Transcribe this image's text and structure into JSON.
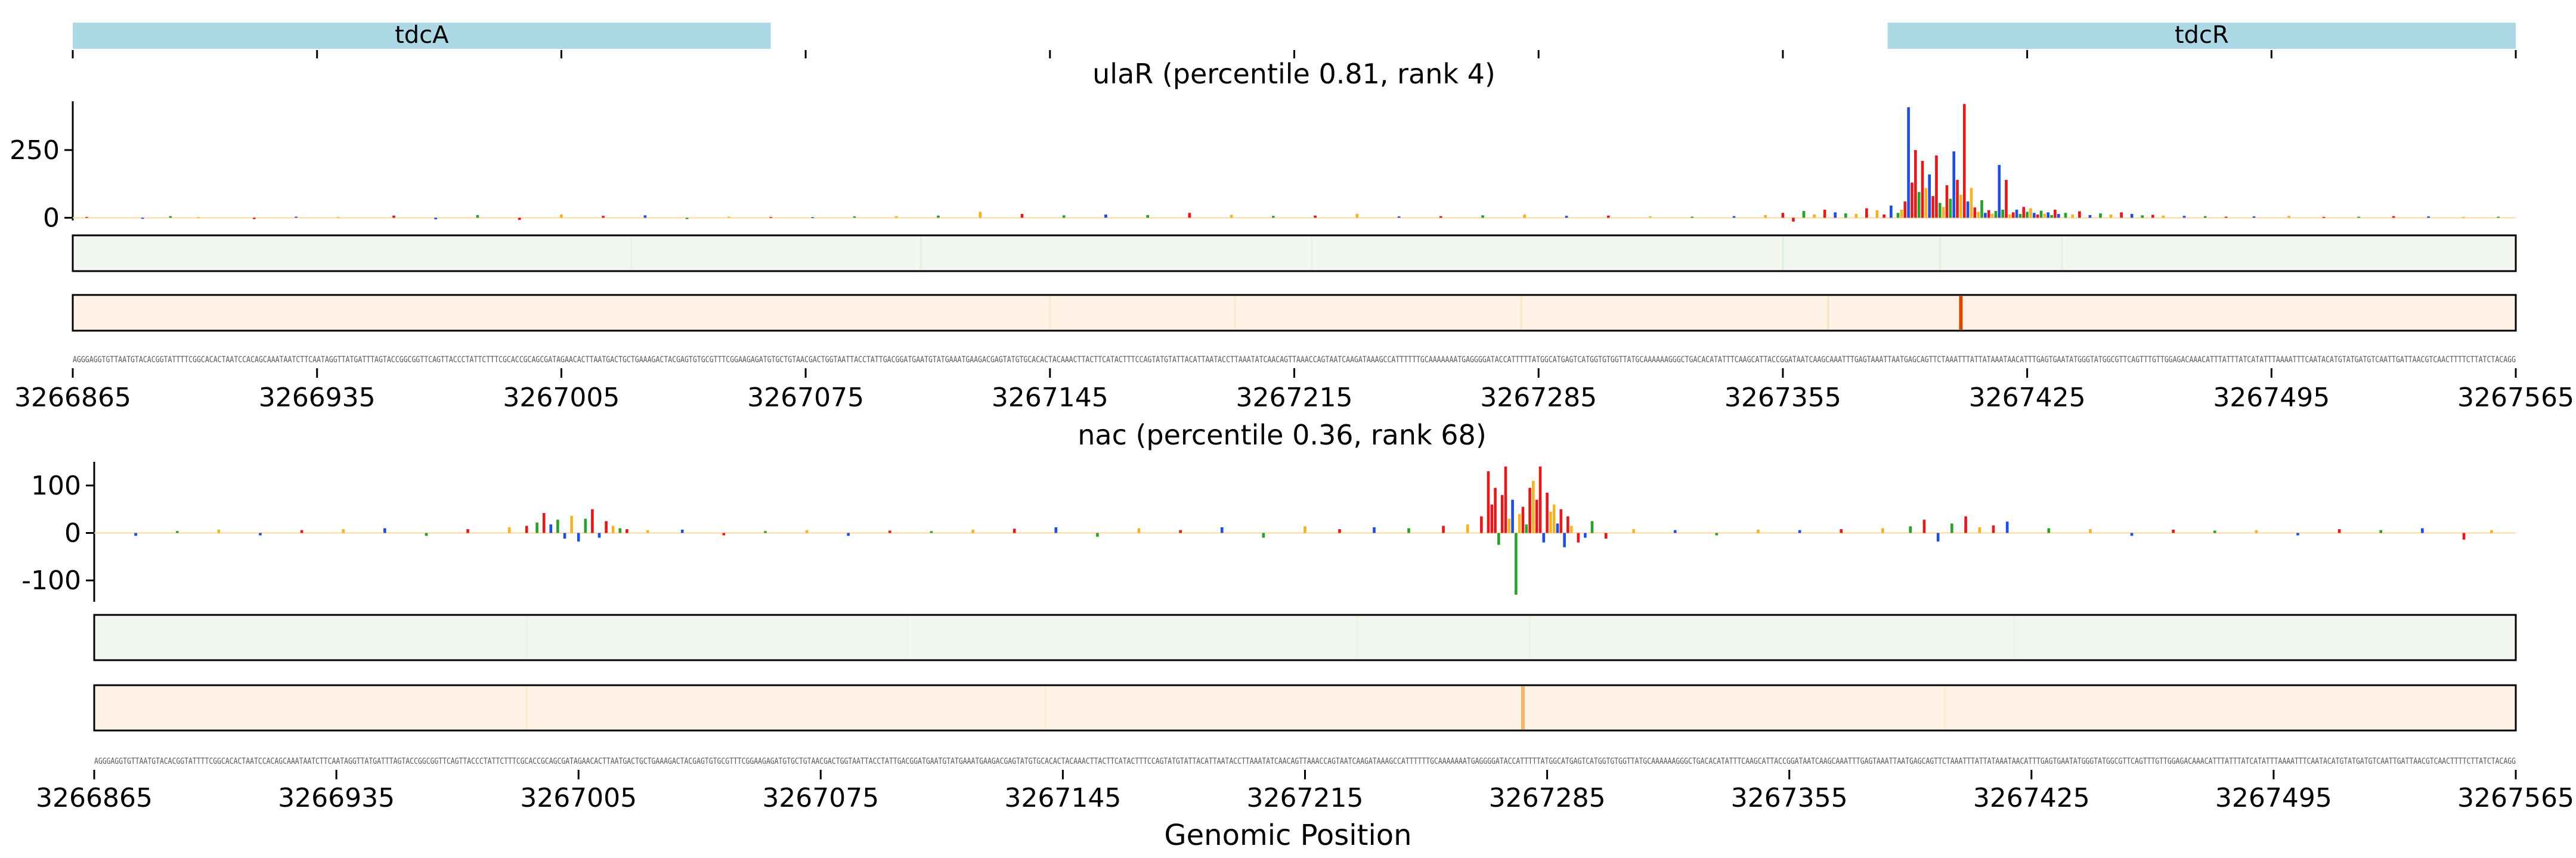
{
  "colors": {
    "A": "#2ca02c",
    "C": "#1f4fe0",
    "G": "#f5b324",
    "T": "#e31a1c",
    "gene": "#add8e6",
    "track1": "#f2f8f0",
    "track2": "#fff3e6",
    "heat_strong": "#d94801",
    "heat_medium": "#f6b26b"
  },
  "x_axis": {
    "label": "Genomic Position",
    "range": [
      3266865,
      3267565
    ],
    "ticks": [
      3266865,
      3266935,
      3267005,
      3267075,
      3267145,
      3267215,
      3267285,
      3267355,
      3267425,
      3267495,
      3267565
    ],
    "tick_labels": [
      "3266865",
      "3266935",
      "3267005",
      "3267075",
      "3267145",
      "3267215",
      "3267285",
      "3267355",
      "3267425",
      "3267495",
      "3267565"
    ]
  },
  "genes": [
    {
      "name": "tdcA",
      "start": 3266865,
      "end": 3267065
    },
    {
      "name": "tdcR",
      "start": 3267385,
      "end": 3267565
    }
  ],
  "sequence": "AGGGAGGTGTTAATGTACACGGTATTTTCGGCACACTAATCCACAGCAAATAATCTTCAATAGGTTATGATTTAGTACCGGCGGTTCAGTTACCCTATTCTTTCGCACCGCAGCGATAGAACACTTAATGACTGCTGAAAGACTACGAGTGTGCGTTTCGGAAGAGATGTGCTGTAACGACTGGTAATTACCTATTGACGGATGAATGTATGAAATGAAGACGAGTATGTGCACACTACAAACTTACTTCATACTTTCCAGTATGTATTACATTAATACCTTAAATATCAACAGTTAAACCAGTAATCAAGATAAAGCCATTTTTTGCAAAAAAATGAGGGGATACCATTTTTATGGCATGAGTCATGGTGTGGTTATGCAAAAAAGGGCTGACACATATTTCAAGCATTACCGGATAATCAAGCAAATTTGAGTAAATTAATGAGCAGTTCTAAATTTATTATAAATAACATTTGAGTGAATATGGGTATGGCGTTCAGTTTGTTGGAGACAAACATTTATTTATCATATTTAAAATTTCAATACATGTATGATGTCAATTGATTAACGTCAACTTTTCTTATCTACAGG",
  "chart_data": [
    {
      "type": "bar",
      "title": "ulaR (percentile 0.81, rank 4)",
      "yticks": [
        0,
        250
      ],
      "ylim": [
        -10,
        430
      ],
      "x": [
        3266869,
        3266885,
        3266893,
        3266901,
        3266917,
        3266929,
        3266941,
        3266957,
        3266969,
        3266981,
        3266993,
        3267005,
        3267017,
        3267029,
        3267041,
        3267053,
        3267065,
        3267077,
        3267089,
        3267101,
        3267113,
        3267125,
        3267137,
        3267149,
        3267161,
        3267173,
        3267185,
        3267197,
        3267209,
        3267221,
        3267233,
        3267245,
        3267257,
        3267269,
        3267281,
        3267293,
        3267305,
        3267317,
        3267329,
        3267341,
        3267350,
        3267355,
        3267358,
        3267361,
        3267364,
        3267367,
        3267370,
        3267373,
        3267376,
        3267379,
        3267382,
        3267384,
        3267386,
        3267388,
        3267389,
        3267390,
        3267391,
        3267392,
        3267393,
        3267394,
        3267395,
        3267396,
        3267397,
        3267398,
        3267399,
        3267400,
        3267401,
        3267402,
        3267403,
        3267404,
        3267405,
        3267406,
        3267407,
        3267408,
        3267409,
        3267410,
        3267411,
        3267412,
        3267413,
        3267414,
        3267415,
        3267416,
        3267417,
        3267418,
        3267419,
        3267420,
        3267421,
        3267422,
        3267423,
        3267424,
        3267425,
        3267426,
        3267427,
        3267428,
        3267429,
        3267430,
        3267431,
        3267432,
        3267433,
        3267434,
        3267436,
        3267438,
        3267440,
        3267443,
        3267446,
        3267449,
        3267452,
        3267455,
        3267458,
        3267461,
        3267464,
        3267470,
        3267476,
        3267482,
        3267490,
        3267500,
        3267510,
        3267520,
        3267530,
        3267540,
        3267550,
        3267560
      ],
      "values": [
        3,
        -4,
        6,
        2,
        -5,
        4,
        3,
        8,
        -6,
        10,
        -8,
        12,
        7,
        9,
        -5,
        4,
        3,
        2,
        5,
        6,
        8,
        22,
        14,
        9,
        12,
        10,
        18,
        11,
        7,
        8,
        14,
        5,
        6,
        9,
        12,
        7,
        8,
        5,
        4,
        6,
        10,
        18,
        -14,
        25,
        12,
        30,
        20,
        16,
        14,
        35,
        28,
        12,
        45,
        18,
        30,
        60,
        408,
        130,
        250,
        95,
        210,
        110,
        160,
        80,
        230,
        55,
        40,
        120,
        70,
        245,
        140,
        85,
        420,
        60,
        110,
        38,
        22,
        65,
        18,
        28,
        15,
        25,
        195,
        30,
        140,
        12,
        20,
        30,
        14,
        40,
        22,
        35,
        18,
        12,
        26,
        15,
        20,
        10,
        30,
        14,
        18,
        12,
        24,
        10,
        16,
        12,
        20,
        14,
        9,
        11,
        8,
        7,
        6,
        4,
        5,
        7,
        3,
        4,
        6,
        5,
        3,
        4
      ],
      "bases": [
        "T",
        "C",
        "A",
        "G",
        "T",
        "C",
        "G",
        "T",
        "C",
        "A",
        "T",
        "G",
        "T",
        "C",
        "A",
        "G",
        "T",
        "C",
        "A",
        "G",
        "A",
        "G",
        "T",
        "A",
        "C",
        "A",
        "T",
        "G",
        "A",
        "T",
        "G",
        "C",
        "T",
        "A",
        "G",
        "C",
        "T",
        "G",
        "A",
        "C",
        "G",
        "T",
        "T",
        "A",
        "G",
        "T",
        "C",
        "A",
        "G",
        "T",
        "G",
        "T",
        "C",
        "A",
        "G",
        "T",
        "C",
        "T",
        "T",
        "A",
        "T",
        "G",
        "C",
        "T",
        "T",
        "A",
        "G",
        "T",
        "A",
        "C",
        "T",
        "G",
        "T",
        "C",
        "G",
        "T",
        "G",
        "A",
        "C",
        "T",
        "G",
        "A",
        "C",
        "A",
        "T",
        "G",
        "T",
        "C",
        "A",
        "T",
        "A",
        "G",
        "C",
        "T",
        "A",
        "G",
        "C",
        "A",
        "T",
        "C",
        "A",
        "G",
        "T",
        "C",
        "A",
        "G",
        "T",
        "C",
        "A",
        "T",
        "G",
        "C",
        "A",
        "T",
        "C",
        "G",
        "T",
        "A",
        "T",
        "C",
        "G",
        "A"
      ],
      "track1_x": [
        3267025,
        3267108,
        3267220,
        3267355,
        3267400,
        3267435
      ],
      "track1_level": [
        0.25,
        0.35,
        0.2,
        0.45,
        0.35,
        0.3
      ],
      "track2_x": [
        3267145,
        3267198,
        3267280,
        3267368,
        3267406
      ],
      "track2_level": [
        0.12,
        0.1,
        0.15,
        0.2,
        1.0
      ]
    },
    {
      "type": "bar",
      "title": "nac (percentile 0.36, rank 68)",
      "yticks": [
        -100,
        0,
        100
      ],
      "ylim": [
        -145,
        150
      ],
      "x": [
        3266877,
        3266889,
        3266901,
        3266913,
        3266925,
        3266937,
        3266949,
        3266961,
        3266973,
        3266985,
        3266990,
        3266993,
        3266995,
        3266997,
        3266999,
        3267001,
        3267003,
        3267005,
        3267007,
        3267009,
        3267011,
        3267013,
        3267015,
        3267017,
        3267019,
        3267025,
        3267035,
        3267047,
        3267059,
        3267071,
        3267083,
        3267095,
        3267107,
        3267119,
        3267131,
        3267143,
        3267155,
        3267167,
        3267179,
        3267191,
        3267203,
        3267215,
        3267225,
        3267235,
        3267245,
        3267255,
        3267262,
        3267266,
        3267268,
        3267269,
        3267270,
        3267271,
        3267272,
        3267273,
        3267274,
        3267275,
        3267276,
        3267277,
        3267278,
        3267279,
        3267280,
        3267281,
        3267282,
        3267283,
        3267284,
        3267285,
        3267286,
        3267287,
        3267288,
        3267289,
        3267290,
        3267291,
        3267292,
        3267294,
        3267296,
        3267298,
        3267302,
        3267310,
        3267322,
        3267334,
        3267346,
        3267358,
        3267370,
        3267382,
        3267390,
        3267394,
        3267398,
        3267402,
        3267406,
        3267410,
        3267414,
        3267418,
        3267430,
        3267442,
        3267454,
        3267466,
        3267478,
        3267490,
        3267502,
        3267514,
        3267526,
        3267538,
        3267550,
        3267558
      ],
      "values": [
        -6,
        4,
        7,
        -5,
        6,
        8,
        10,
        -6,
        8,
        12,
        15,
        22,
        42,
        18,
        28,
        -12,
        36,
        -18,
        30,
        50,
        -10,
        25,
        15,
        10,
        8,
        6,
        7,
        -5,
        4,
        6,
        -6,
        5,
        4,
        7,
        9,
        12,
        -8,
        10,
        6,
        12,
        -10,
        14,
        8,
        12,
        10,
        15,
        18,
        35,
        130,
        60,
        95,
        -25,
        80,
        140,
        30,
        70,
        -130,
        40,
        55,
        18,
        95,
        110,
        70,
        140,
        -20,
        85,
        45,
        60,
        20,
        50,
        -30,
        35,
        15,
        -20,
        -10,
        25,
        -12,
        8,
        6,
        -5,
        7,
        6,
        8,
        10,
        14,
        28,
        -18,
        20,
        35,
        12,
        16,
        24,
        10,
        8,
        -6,
        7,
        5,
        6,
        -5,
        8,
        6,
        10,
        -14,
        6
      ],
      "bases": [
        "C",
        "A",
        "G",
        "C",
        "T",
        "G",
        "C",
        "A",
        "T",
        "G",
        "T",
        "A",
        "T",
        "C",
        "A",
        "C",
        "G",
        "C",
        "A",
        "T",
        "C",
        "T",
        "G",
        "A",
        "T",
        "G",
        "C",
        "T",
        "A",
        "G",
        "C",
        "T",
        "A",
        "G",
        "T",
        "C",
        "A",
        "G",
        "T",
        "C",
        "A",
        "G",
        "T",
        "C",
        "A",
        "T",
        "G",
        "T",
        "T",
        "T",
        "T",
        "A",
        "T",
        "T",
        "G",
        "C",
        "A",
        "G",
        "T",
        "A",
        "T",
        "G",
        "T",
        "T",
        "C",
        "T",
        "G",
        "G",
        "C",
        "T",
        "C",
        "T",
        "G",
        "T",
        "C",
        "A",
        "T",
        "G",
        "C",
        "A",
        "G",
        "C",
        "T",
        "G",
        "A",
        "T",
        "C",
        "A",
        "T",
        "G",
        "T",
        "C",
        "A",
        "G",
        "C",
        "T",
        "A",
        "G",
        "C",
        "T",
        "A",
        "C",
        "T",
        "G"
      ],
      "track1_x": [
        3266990,
        3267100,
        3267230,
        3267280,
        3267420
      ],
      "track1_level": [
        0.2,
        0.15,
        0.2,
        0.25,
        0.2
      ],
      "track2_x": [
        3266990,
        3267140,
        3267278,
        3267400
      ],
      "track2_level": [
        0.12,
        0.1,
        1.0,
        0.1
      ]
    }
  ]
}
